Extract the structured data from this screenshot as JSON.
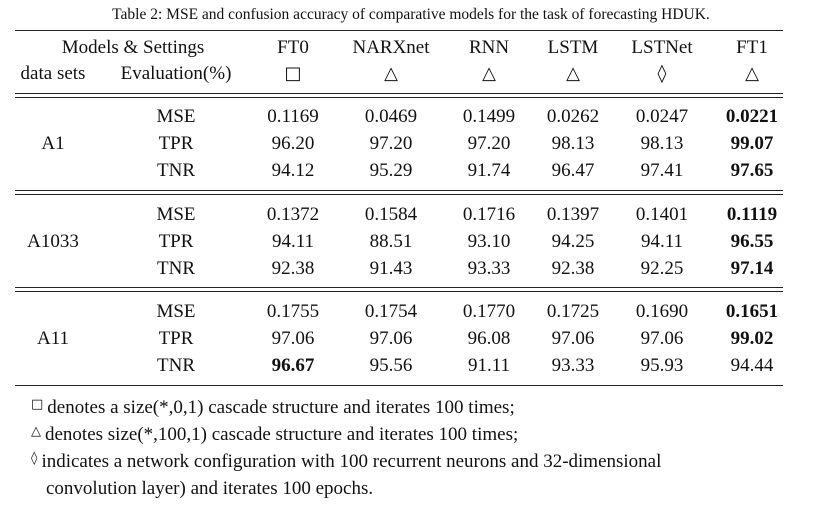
{
  "caption": "Table 2: MSE and confusion accuracy of comparative models for the task of forecasting HDUK.",
  "header": {
    "row1_label": "Models & Settings",
    "row2_label_a": "data sets",
    "row2_label_b": "Evaluation(%)",
    "models": [
      {
        "name": "FT0",
        "symbol": "□"
      },
      {
        "name": "NARXnet",
        "symbol": "△"
      },
      {
        "name": "RNN",
        "symbol": "△"
      },
      {
        "name": "LSTM",
        "symbol": "△"
      },
      {
        "name": "LSTNet",
        "symbol": "◊"
      },
      {
        "name": "FT1",
        "symbol": "△"
      }
    ]
  },
  "groups": [
    {
      "dataset": "A1",
      "rows": [
        {
          "metric": "MSE",
          "values": [
            "0.1169",
            "0.0469",
            "0.1499",
            "0.0262",
            "0.0247",
            "0.0221"
          ],
          "bold": [
            5
          ]
        },
        {
          "metric": "TPR",
          "values": [
            "96.20",
            "97.20",
            "97.20",
            "98.13",
            "98.13",
            "99.07"
          ],
          "bold": [
            5
          ]
        },
        {
          "metric": "TNR",
          "values": [
            "94.12",
            "95.29",
            "91.74",
            "96.47",
            "97.41",
            "97.65"
          ],
          "bold": [
            5
          ]
        }
      ]
    },
    {
      "dataset": "A1033",
      "rows": [
        {
          "metric": "MSE",
          "values": [
            "0.1372",
            "0.1584",
            "0.1716",
            "0.1397",
            "0.1401",
            "0.1119"
          ],
          "bold": [
            5
          ]
        },
        {
          "metric": "TPR",
          "values": [
            "94.11",
            "88.51",
            "93.10",
            "94.25",
            "94.11",
            "96.55"
          ],
          "bold": [
            5
          ]
        },
        {
          "metric": "TNR",
          "values": [
            "92.38",
            "91.43",
            "93.33",
            "92.38",
            "92.25",
            "97.14"
          ],
          "bold": [
            5
          ]
        }
      ]
    },
    {
      "dataset": "A11",
      "rows": [
        {
          "metric": "MSE",
          "values": [
            "0.1755",
            "0.1754",
            "0.1770",
            "0.1725",
            "0.1690",
            "0.1651"
          ],
          "bold": [
            5
          ]
        },
        {
          "metric": "TPR",
          "values": [
            "97.06",
            "97.06",
            "96.08",
            "97.06",
            "97.06",
            "99.02"
          ],
          "bold": [
            5
          ]
        },
        {
          "metric": "TNR",
          "values": [
            "96.67",
            "95.56",
            "91.11",
            "93.33",
            "95.93",
            "94.44"
          ],
          "bold": [
            0
          ]
        }
      ]
    }
  ],
  "notes": [
    {
      "symbol": "□",
      "text": "denotes a size(*,0,1) cascade structure and iterates 100 times;"
    },
    {
      "symbol": "△",
      "text": "denotes size(*,100,1) cascade structure and iterates 100 times;"
    },
    {
      "symbol": "◊",
      "text": "indicates a network configuration with 100 recurrent neurons and 32-dimensional"
    },
    {
      "symbol": "",
      "text": "convolution layer) and iterates 100 epochs."
    }
  ]
}
